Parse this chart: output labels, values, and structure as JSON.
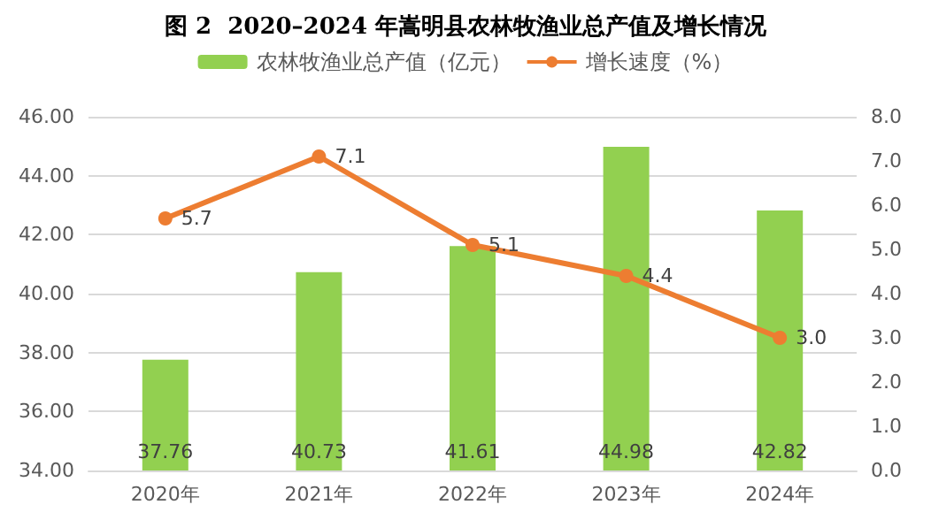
{
  "chart_data": {
    "type": "bar",
    "title": "图 2  2020–2024 年嵩明县农林牧渔业总产值及增长情况",
    "categories": [
      "2020年",
      "2021年",
      "2022年",
      "2023年",
      "2024年"
    ],
    "series": [
      {
        "name": "农林牧渔业总产值（亿元）",
        "color": "#92d050",
        "values": [
          37.76,
          40.73,
          41.61,
          44.98,
          42.82
        ]
      },
      {
        "name": "增长速度（%）",
        "type": "line",
        "axis": "y2",
        "color": "#ed7d31",
        "values": [
          5.7,
          7.1,
          5.1,
          4.4,
          3.0
        ],
        "value_labels": [
          "5.7",
          "7.1",
          "5.1",
          "4.4",
          "3.0"
        ]
      }
    ],
    "ylim": [
      34,
      46
    ],
    "yticks": [
      {
        "value": 34,
        "label": "34.00"
      },
      {
        "value": 36,
        "label": "36.00"
      },
      {
        "value": 38,
        "label": "38.00"
      },
      {
        "value": 40,
        "label": "40.00"
      },
      {
        "value": 42,
        "label": "42.00"
      },
      {
        "value": 44,
        "label": "44.00"
      },
      {
        "value": 46,
        "label": "46.00"
      }
    ],
    "y2lim": [
      0,
      8
    ],
    "y2ticks": [
      {
        "value": 0,
        "label": "0.0"
      },
      {
        "value": 1,
        "label": "1.0"
      },
      {
        "value": 2,
        "label": "2.0"
      },
      {
        "value": 3,
        "label": "3.0"
      },
      {
        "value": 4,
        "label": "4.0"
      },
      {
        "value": 5,
        "label": "5.0"
      },
      {
        "value": 6,
        "label": "6.0"
      },
      {
        "value": 7,
        "label": "7.0"
      },
      {
        "value": 8,
        "label": "8.0"
      }
    ],
    "data_labels": true,
    "grid": "y",
    "legend": "top",
    "marker": "circle"
  }
}
